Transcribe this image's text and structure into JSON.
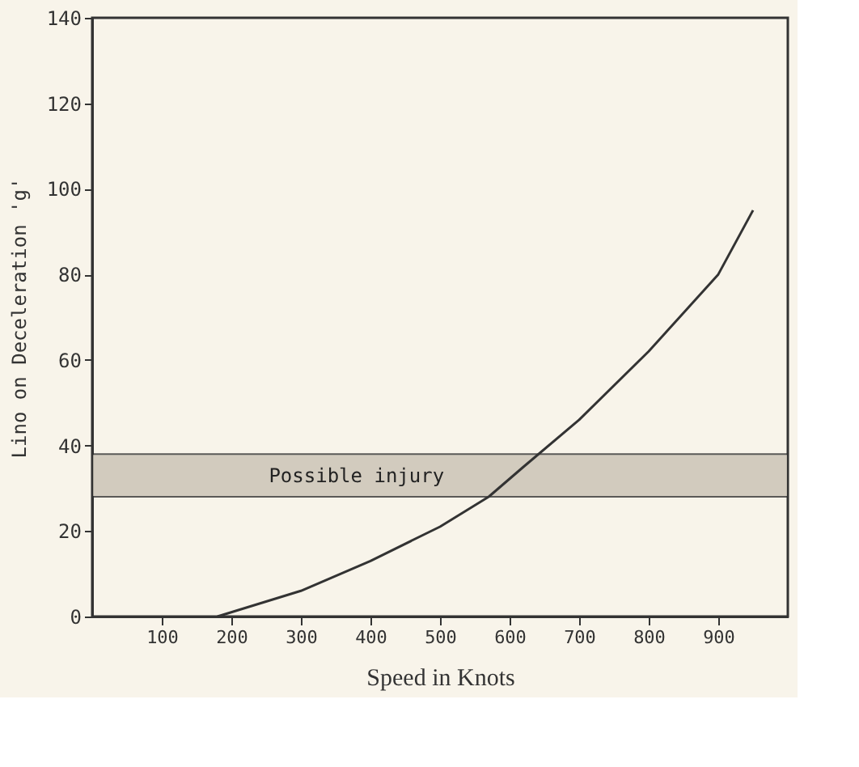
{
  "chart_data": {
    "type": "line",
    "xlabel": "Speed in Knots",
    "ylabel": "Lino on Deceleration 'g'",
    "x": [
      180,
      300,
      400,
      500,
      570,
      620,
      700,
      800,
      900,
      950
    ],
    "series": [
      {
        "color": "#333333",
        "values": [
          0,
          6,
          13,
          21,
          28,
          35,
          46,
          62,
          80,
          95
        ]
      }
    ],
    "xlim": [
      0,
      1000
    ],
    "xticks": [
      100,
      200,
      300,
      400,
      500,
      600,
      700,
      800,
      900
    ],
    "ylim": [
      0,
      140
    ],
    "yticks": [
      0,
      20,
      40,
      60,
      80,
      100,
      120,
      140
    ],
    "bands": [
      {
        "axis": "y",
        "from": 28,
        "to": 38,
        "label": "Possible injury",
        "color": "#c9c2b4"
      }
    ],
    "grid": false,
    "marker": "none",
    "line_style": "solid"
  }
}
